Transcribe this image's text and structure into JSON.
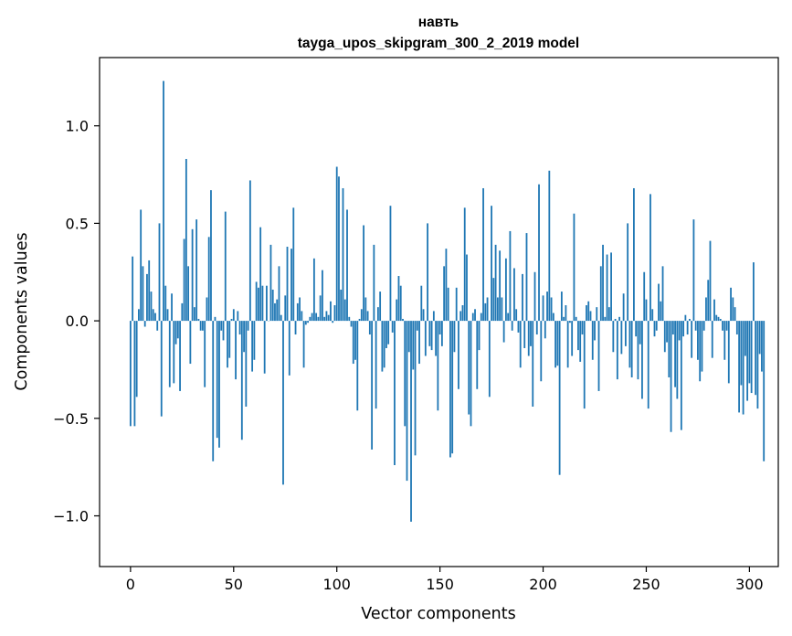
{
  "chart_data": {
    "type": "bar",
    "title": "навть",
    "subtitle": "tayga_upos_skipgram_300_2_2019 model",
    "xlabel": "Vector components",
    "ylabel": "Components values",
    "xlim": [
      -15,
      314
    ],
    "ylim": [
      -1.26,
      1.35
    ],
    "xticks": [
      0,
      50,
      100,
      150,
      200,
      250,
      300
    ],
    "xtick_labels": [
      "0",
      "50",
      "100",
      "150",
      "200",
      "250",
      "300"
    ],
    "yticks": [
      1.0,
      0.5,
      0.0,
      -0.5,
      -1.0
    ],
    "ytick_labels": [
      "1.0",
      "0.5",
      "0.0",
      "−0.5",
      "−1.0"
    ],
    "grid": false,
    "bar_color": "#1f77b4",
    "values": [
      -0.54,
      0.33,
      -0.54,
      -0.39,
      0.06,
      0.57,
      0.28,
      -0.03,
      0.24,
      0.31,
      0.15,
      0.06,
      0.04,
      -0.05,
      0.5,
      -0.49,
      1.23,
      0.18,
      0.06,
      -0.34,
      0.14,
      -0.32,
      -0.12,
      -0.09,
      -0.36,
      0.09,
      0.42,
      0.83,
      0.28,
      -0.22,
      0.47,
      0.07,
      0.52,
      0.01,
      -0.05,
      -0.05,
      -0.34,
      0.12,
      0.43,
      0.67,
      -0.72,
      0.02,
      -0.6,
      -0.65,
      -0.05,
      -0.1,
      0.56,
      -0.24,
      -0.19,
      0.01,
      0.06,
      -0.3,
      0.05,
      -0.07,
      -0.61,
      -0.16,
      -0.44,
      -0.05,
      0.72,
      -0.26,
      -0.2,
      0.2,
      0.17,
      0.48,
      0.18,
      -0.27,
      0.18,
      0.0,
      0.39,
      0.16,
      0.09,
      0.11,
      0.28,
      0.03,
      -0.84,
      0.13,
      0.38,
      -0.28,
      0.37,
      0.58,
      -0.07,
      0.09,
      0.12,
      0.05,
      -0.24,
      -0.02,
      -0.01,
      0.02,
      0.04,
      0.32,
      0.04,
      0.02,
      0.13,
      0.26,
      0.02,
      0.05,
      0.03,
      0.1,
      -0.01,
      0.08,
      0.79,
      0.74,
      0.16,
      0.68,
      0.11,
      0.57,
      0.02,
      -0.03,
      -0.22,
      -0.2,
      -0.46,
      0.01,
      0.06,
      0.49,
      0.12,
      0.05,
      -0.07,
      -0.66,
      0.39,
      -0.45,
      0.07,
      0.15,
      -0.26,
      -0.24,
      -0.14,
      -0.12,
      0.59,
      -0.06,
      -0.74,
      0.11,
      0.23,
      0.18,
      0.01,
      -0.54,
      -0.82,
      -0.16,
      -1.03,
      -0.25,
      -0.69,
      -0.05,
      -0.22,
      0.18,
      0.06,
      -0.18,
      0.5,
      -0.13,
      -0.15,
      0.05,
      -0.18,
      -0.46,
      -0.07,
      -0.13,
      0.28,
      0.37,
      0.17,
      -0.7,
      -0.68,
      -0.16,
      0.17,
      -0.35,
      0.05,
      0.08,
      0.58,
      0.34,
      -0.48,
      -0.54,
      0.04,
      0.06,
      -0.35,
      -0.15,
      0.04,
      0.68,
      0.09,
      0.12,
      -0.39,
      0.59,
      0.22,
      0.39,
      0.12,
      0.36,
      0.12,
      -0.11,
      0.32,
      0.04,
      0.46,
      -0.05,
      0.27,
      0.06,
      -0.06,
      -0.24,
      0.24,
      -0.14,
      0.45,
      -0.18,
      -0.13,
      -0.44,
      0.25,
      -0.07,
      0.7,
      -0.31,
      0.13,
      -0.09,
      0.15,
      0.77,
      0.12,
      0.04,
      -0.24,
      -0.23,
      -0.79,
      0.15,
      0.02,
      0.08,
      -0.24,
      -0.01,
      -0.18,
      0.55,
      0.02,
      -0.15,
      -0.21,
      -0.07,
      -0.45,
      0.08,
      0.1,
      0.05,
      -0.2,
      -0.1,
      0.07,
      -0.36,
      0.28,
      0.39,
      0.02,
      0.34,
      0.07,
      0.35,
      -0.16,
      0.01,
      -0.3,
      0.02,
      -0.17,
      0.14,
      -0.13,
      0.5,
      -0.24,
      -0.29,
      0.68,
      -0.08,
      -0.3,
      -0.12,
      -0.4,
      0.25,
      0.11,
      -0.45,
      0.65,
      0.06,
      -0.08,
      -0.05,
      0.19,
      0.1,
      0.28,
      -0.16,
      -0.11,
      -0.29,
      -0.57,
      -0.07,
      -0.34,
      -0.4,
      -0.1,
      -0.56,
      -0.08,
      0.03,
      -0.07,
      0.01,
      -0.19,
      0.52,
      -0.05,
      -0.2,
      -0.31,
      -0.26,
      -0.05,
      0.12,
      0.21,
      0.41,
      -0.19,
      0.11,
      0.03,
      0.02,
      0.01,
      -0.05,
      -0.2,
      -0.05,
      -0.32,
      0.17,
      0.12,
      0.07,
      -0.07,
      -0.47,
      -0.33,
      -0.48,
      -0.18,
      -0.41,
      -0.32,
      -0.37,
      0.3,
      -0.38,
      -0.45,
      -0.17,
      -0.26,
      -0.72
    ]
  }
}
